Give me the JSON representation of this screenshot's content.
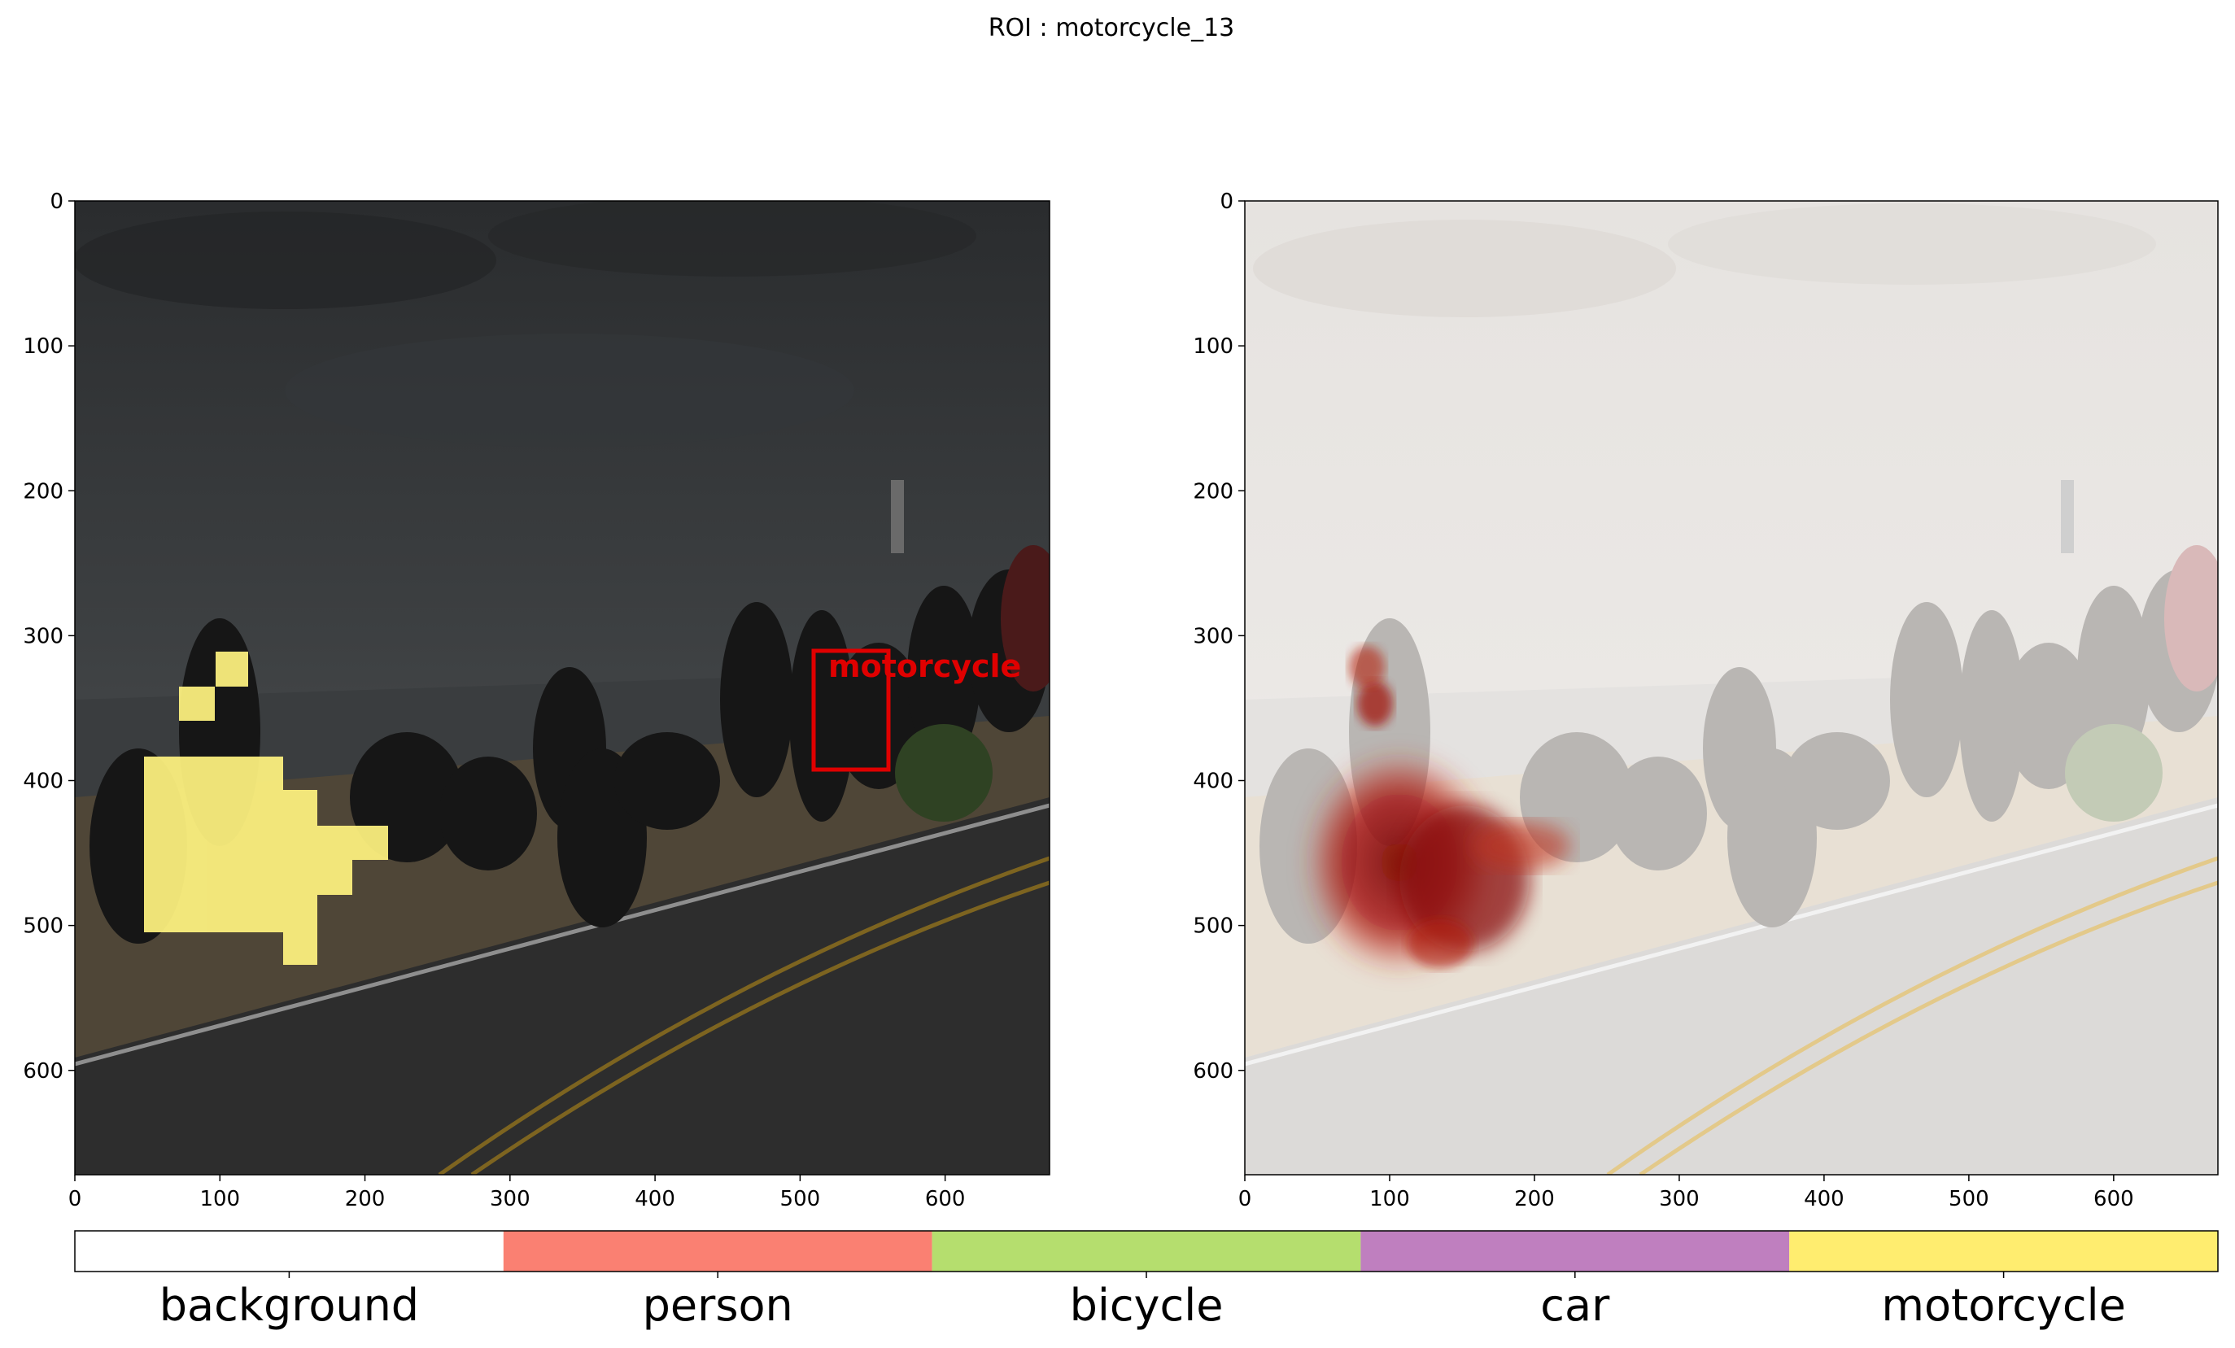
{
  "figure": {
    "title": "ROI : motorcycle_13"
  },
  "left_panel": {
    "x_ticks": [
      "0",
      "100",
      "200",
      "300",
      "400",
      "500",
      "600"
    ],
    "y_ticks": [
      "0",
      "100",
      "200",
      "300",
      "400",
      "500",
      "600"
    ],
    "extent": [
      0,
      672
    ],
    "roi_box": {
      "label": "motorcycle",
      "x0": 508,
      "y0": 309,
      "x1": 560,
      "y1": 392,
      "color": "#e00000"
    }
  },
  "right_panel": {
    "x_ticks": [
      "0",
      "100",
      "200",
      "300",
      "400",
      "500",
      "600"
    ],
    "y_ticks": [
      "0",
      "100",
      "200",
      "300",
      "400",
      "500",
      "600"
    ],
    "extent": [
      0,
      672
    ]
  },
  "legend": {
    "classes": [
      {
        "label": "background",
        "color": "#ffffff"
      },
      {
        "label": "person",
        "color": "#fa8072"
      },
      {
        "label": "bicycle",
        "color": "#b5de6e"
      },
      {
        "label": "car",
        "color": "#bf7fbf"
      },
      {
        "label": "motorcycle",
        "color": "#ffed6f"
      }
    ]
  },
  "colors": {
    "segmentation_overlay": "#fff380",
    "heatmap": "#9b0e08"
  }
}
